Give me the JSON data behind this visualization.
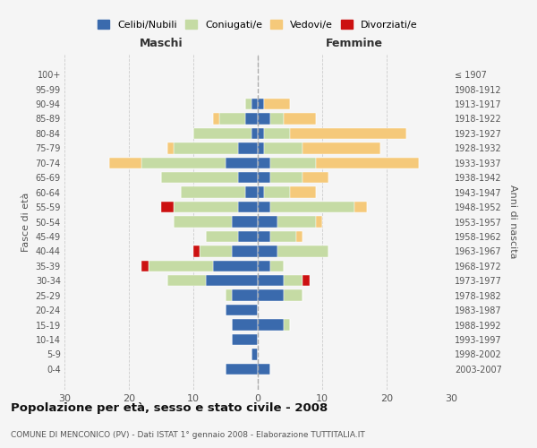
{
  "age_groups": [
    "0-4",
    "5-9",
    "10-14",
    "15-19",
    "20-24",
    "25-29",
    "30-34",
    "35-39",
    "40-44",
    "45-49",
    "50-54",
    "55-59",
    "60-64",
    "65-69",
    "70-74",
    "75-79",
    "80-84",
    "85-89",
    "90-94",
    "95-99",
    "100+"
  ],
  "birth_years": [
    "2003-2007",
    "1998-2002",
    "1993-1997",
    "1988-1992",
    "1983-1987",
    "1978-1982",
    "1973-1977",
    "1968-1972",
    "1963-1967",
    "1958-1962",
    "1953-1957",
    "1948-1952",
    "1943-1947",
    "1938-1942",
    "1933-1937",
    "1928-1932",
    "1923-1927",
    "1918-1922",
    "1913-1917",
    "1908-1912",
    "≤ 1907"
  ],
  "male": {
    "celibi": [
      5,
      1,
      4,
      4,
      5,
      4,
      8,
      7,
      4,
      3,
      4,
      3,
      2,
      3,
      5,
      3,
      1,
      2,
      1,
      0,
      0
    ],
    "coniugati": [
      0,
      0,
      0,
      0,
      0,
      1,
      6,
      10,
      5,
      5,
      9,
      10,
      10,
      12,
      13,
      10,
      9,
      4,
      1,
      0,
      0
    ],
    "vedovi": [
      0,
      0,
      0,
      0,
      0,
      0,
      0,
      0,
      0,
      0,
      0,
      0,
      0,
      0,
      5,
      1,
      0,
      1,
      0,
      0,
      0
    ],
    "divorziati": [
      0,
      0,
      0,
      0,
      0,
      0,
      0,
      1,
      1,
      0,
      0,
      2,
      0,
      0,
      0,
      0,
      0,
      0,
      0,
      0,
      0
    ]
  },
  "female": {
    "celibi": [
      2,
      0,
      0,
      4,
      0,
      4,
      4,
      2,
      3,
      2,
      3,
      2,
      1,
      2,
      2,
      1,
      1,
      2,
      1,
      0,
      0
    ],
    "coniugati": [
      0,
      0,
      0,
      1,
      0,
      3,
      3,
      2,
      8,
      4,
      6,
      13,
      4,
      5,
      7,
      6,
      4,
      2,
      0,
      0,
      0
    ],
    "vedovi": [
      0,
      0,
      0,
      0,
      0,
      0,
      0,
      0,
      0,
      1,
      1,
      2,
      4,
      4,
      16,
      12,
      18,
      5,
      4,
      0,
      0
    ],
    "divorziati": [
      0,
      0,
      0,
      0,
      0,
      0,
      1,
      0,
      0,
      0,
      0,
      0,
      0,
      0,
      0,
      0,
      0,
      0,
      0,
      0,
      0
    ]
  },
  "colors": {
    "celibi": "#3a6aad",
    "coniugati": "#c5dba4",
    "vedovi": "#f5c97a",
    "divorziati": "#cc1111"
  },
  "legend_labels": [
    "Celibi/Nubili",
    "Coniugati/e",
    "Vedovi/e",
    "Divorziati/e"
  ],
  "title": "Popolazione per età, sesso e stato civile - 2008",
  "subtitle": "COMUNE DI MENCONICO (PV) - Dati ISTAT 1° gennaio 2008 - Elaborazione TUTTITALIA.IT",
  "xlabel_left": "Maschi",
  "xlabel_right": "Femmine",
  "ylabel_left": "Fasce di età",
  "ylabel_right": "Anni di nascita",
  "xlim": 30,
  "background_color": "#f5f5f5"
}
